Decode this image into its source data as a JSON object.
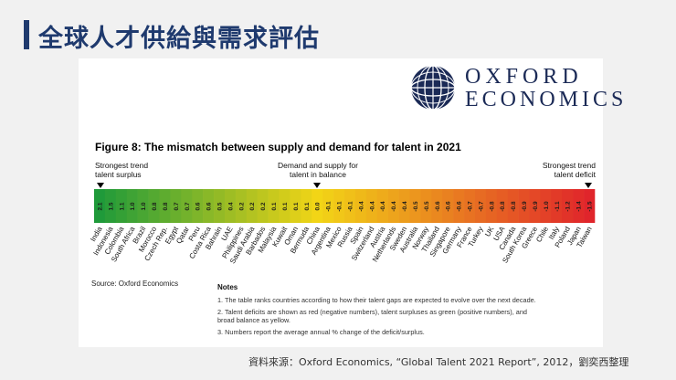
{
  "slide": {
    "title": "全球人才供給與需求評估",
    "footer": "資料來源：Oxford Economics, “Global Talent 2021 Report”, 2012，劉奕西整理"
  },
  "logo": {
    "line1": "OXFORD",
    "line2": "ECONOMICS"
  },
  "chart_data": {
    "type": "heatmap",
    "title": "Figure 8: The mismatch between supply and demand for talent in 2021",
    "categories": [
      "India",
      "Indonesia",
      "Colombia",
      "South Africa",
      "Brazil",
      "Morocco",
      "Czech Rep.",
      "Egypt",
      "Qatar",
      "Peru",
      "Costa Rica",
      "Bahrain",
      "UAE",
      "Philippines",
      "Saudi Arabia",
      "Barbados",
      "Malaysia",
      "Kuwait",
      "Oman",
      "Bermuda",
      "China",
      "Argentina",
      "Mexico",
      "Russia",
      "Spain",
      "Switzerland",
      "Austria",
      "Netherlands",
      "Sweden",
      "Australia",
      "Norway",
      "Thailand",
      "Singapore",
      "Germany",
      "France",
      "Turkey",
      "UK",
      "USA",
      "Canada",
      "South Korea",
      "Greece",
      "Chile",
      "Italy",
      "Poland",
      "Japan",
      "Taiwan"
    ],
    "values": [
      2.1,
      1.5,
      1.1,
      1.0,
      1.0,
      0.8,
      0.8,
      0.7,
      0.7,
      0.6,
      0.6,
      0.5,
      0.4,
      0.2,
      0.2,
      0.2,
      0.1,
      0.1,
      0.1,
      0.1,
      0.0,
      -0.1,
      -0.1,
      -0.1,
      -0.4,
      -0.4,
      -0.4,
      -0.4,
      -0.4,
      -0.5,
      -0.5,
      -0.6,
      -0.6,
      -0.6,
      -0.7,
      -0.7,
      -0.8,
      -0.8,
      -0.8,
      -0.9,
      -0.9,
      -1.0,
      -1.1,
      -1.2,
      -1.4,
      -1.5
    ],
    "annotations": {
      "left": [
        "Strongest trend",
        "talent surplus"
      ],
      "middle": [
        "Demand and supply for",
        "talent in balance"
      ],
      "right": [
        "Strongest trend",
        "talent deficit"
      ]
    },
    "colors": {
      "surplus": "#1f9a3a",
      "balance": "#f2d516",
      "deficit": "#e0252b"
    }
  },
  "source": "Source: Oxford Economics",
  "notes": {
    "heading": "Notes",
    "items": [
      "1.  The table ranks countries according to how their talent gaps are expected to evolve over the next decade.",
      "2.  Talent deficits are shown as red (negative numbers), talent surpluses as green (positive numbers), and",
      "     broad balance as yellow.",
      "3.  Numbers report the average annual % change of the deficit/surplus."
    ]
  }
}
